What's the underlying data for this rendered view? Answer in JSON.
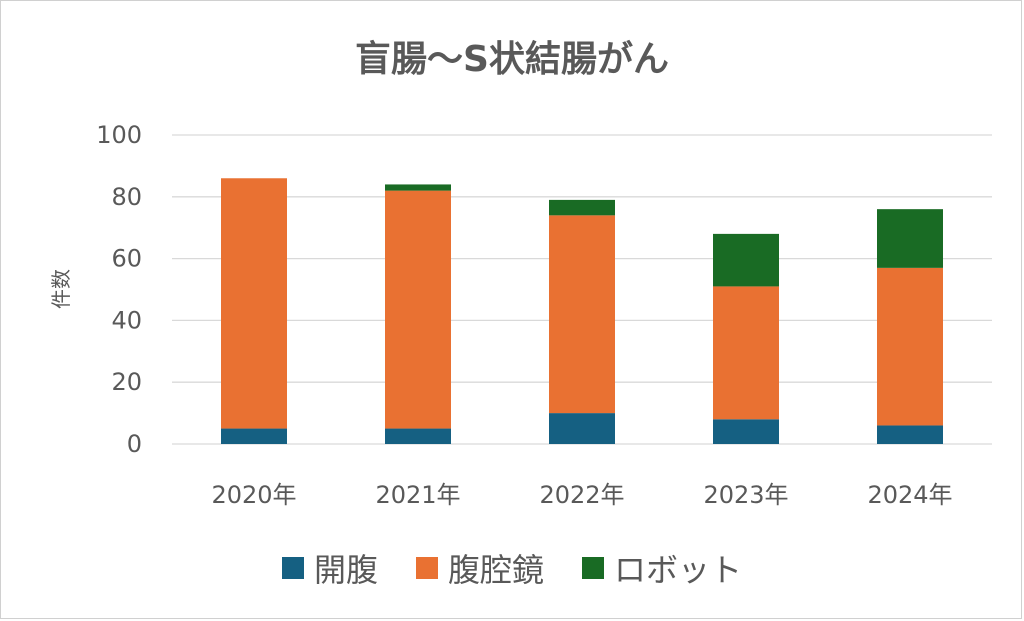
{
  "chart_data": {
    "type": "bar",
    "stacked": true,
    "title": "盲腸～S状結腸がん",
    "ylabel": "件数",
    "xlabel": "",
    "categories": [
      "2020年",
      "2021年",
      "2022年",
      "2023年",
      "2024年"
    ],
    "ylim": [
      0,
      100
    ],
    "yticks": [
      0,
      20,
      40,
      60,
      80,
      100
    ],
    "grid": true,
    "legend_position": "bottom",
    "series": [
      {
        "name": "開腹",
        "color": "#156082",
        "values": [
          5,
          5,
          10,
          8,
          6
        ]
      },
      {
        "name": "腹腔鏡",
        "color": "#E97132",
        "values": [
          81,
          77,
          64,
          43,
          51
        ]
      },
      {
        "name": "ロボット",
        "color": "#196B24",
        "values": [
          0,
          2,
          5,
          17,
          19
        ]
      }
    ]
  }
}
